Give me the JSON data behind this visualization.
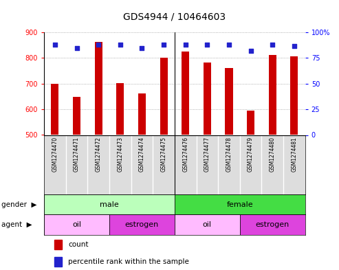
{
  "title": "GDS4944 / 10464603",
  "samples": [
    "GSM1274470",
    "GSM1274471",
    "GSM1274472",
    "GSM1274473",
    "GSM1274474",
    "GSM1274475",
    "GSM1274476",
    "GSM1274477",
    "GSM1274478",
    "GSM1274479",
    "GSM1274480",
    "GSM1274481"
  ],
  "counts": [
    700,
    648,
    862,
    702,
    663,
    800,
    825,
    783,
    762,
    596,
    812,
    808
  ],
  "percentiles": [
    88,
    85,
    88,
    88,
    85,
    88,
    88,
    88,
    88,
    82,
    88,
    87
  ],
  "ylim_left": [
    500,
    900
  ],
  "ylim_right": [
    0,
    100
  ],
  "yticks_left": [
    500,
    600,
    700,
    800,
    900
  ],
  "yticks_right": [
    0,
    25,
    50,
    75,
    100
  ],
  "bar_color": "#cc0000",
  "dot_color": "#2222cc",
  "grid_color": "#999999",
  "gender_groups": [
    {
      "label": "male",
      "start": 0,
      "end": 6,
      "color": "#bbffbb"
    },
    {
      "label": "female",
      "start": 6,
      "end": 12,
      "color": "#44dd44"
    }
  ],
  "agent_groups": [
    {
      "label": "oil",
      "start": 0,
      "end": 3,
      "color": "#ffbbff"
    },
    {
      "label": "estrogen",
      "start": 3,
      "end": 6,
      "color": "#dd44dd"
    },
    {
      "label": "oil",
      "start": 6,
      "end": 9,
      "color": "#ffbbff"
    },
    {
      "label": "estrogen",
      "start": 9,
      "end": 12,
      "color": "#dd44dd"
    }
  ],
  "legend_count_color": "#cc0000",
  "legend_pct_color": "#2222cc",
  "legend_count_label": "count",
  "legend_pct_label": "percentile rank within the sample"
}
